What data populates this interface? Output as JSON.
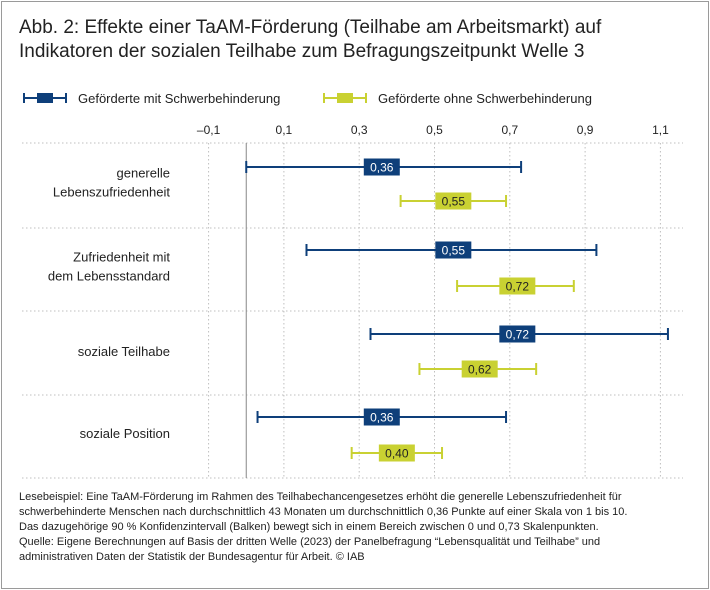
{
  "title_line1": "Abb. 2: Effekte einer TaAM-Förderung (Teilhabe am Arbeitsmarkt) auf",
  "title_line2": "Indikatoren der sozialen Teilhabe zum Befragungszeitpunkt Welle 3",
  "colors": {
    "navy": "#0e3f7a",
    "lime": "#c9d132",
    "grid": "#bfbfbf",
    "zero": "#888888"
  },
  "chart_data": {
    "type": "dot-with-confidence-interval",
    "xlim": [
      -0.16,
      1.16
    ],
    "x_ticks": [
      -0.1,
      0.1,
      0.3,
      0.5,
      0.7,
      0.9,
      1.1
    ],
    "x_tick_labels": [
      "–0,1",
      "0,1",
      "0,3",
      "0,5",
      "0,7",
      "0,9",
      "1,1"
    ],
    "legend": [
      {
        "name": "Geförderte mit Schwerbehinderung",
        "color": "#0e3f7a"
      },
      {
        "name": "Geförderte ohne Schwerbehinderung",
        "color": "#c9d132"
      }
    ],
    "categories": [
      {
        "label_lines": [
          "generelle",
          "Lebenszufriedenheit"
        ]
      },
      {
        "label_lines": [
          "Zufriedenheit mit",
          "dem Lebensstandard"
        ]
      },
      {
        "label_lines": [
          "soziale Teilhabe"
        ]
      },
      {
        "label_lines": [
          "soziale Position"
        ]
      }
    ],
    "series": [
      {
        "name": "Geförderte mit Schwerbehinderung",
        "values": [
          0.36,
          0.55,
          0.72,
          0.36
        ],
        "value_labels": [
          "0,36",
          "0,55",
          "0,72",
          "0,36"
        ],
        "ci_low": [
          0.0,
          0.16,
          0.33,
          0.03
        ],
        "ci_high": [
          0.73,
          0.93,
          1.12,
          0.69
        ]
      },
      {
        "name": "Geförderte ohne Schwerbehinderung",
        "values": [
          0.55,
          0.72,
          0.62,
          0.4
        ],
        "value_labels": [
          "0,55",
          "0,72",
          "0,62",
          "0,40"
        ],
        "ci_low": [
          0.41,
          0.56,
          0.46,
          0.28
        ],
        "ci_high": [
          0.69,
          0.87,
          0.77,
          0.52
        ]
      }
    ]
  },
  "notes": {
    "line1": "Lesebeispiel: Eine TaAM-Förderung im Rahmen des Teilhabechancengesetzes erhöht die generelle Lebenszufriedenheit für",
    "line2": "schwerbehinderte Menschen nach durchschnittlich 43 Monaten um durchschnittlich 0,36 Punkte auf einer Skala von 1 bis 10.",
    "line3": "Das dazugehörige 90 % Konfidenzintervall (Balken) bewegt sich in einem Bereich zwischen 0 und 0,73 Skalenpunkten.",
    "line4": "Quelle: Eigene Berechnungen auf Basis der dritten Welle (2023) der Panelbefragung “Lebensqualität und Teilhabe” und",
    "line5": "administrativen Daten der Statistik der Bundesagentur für Arbeit.  © IAB"
  }
}
